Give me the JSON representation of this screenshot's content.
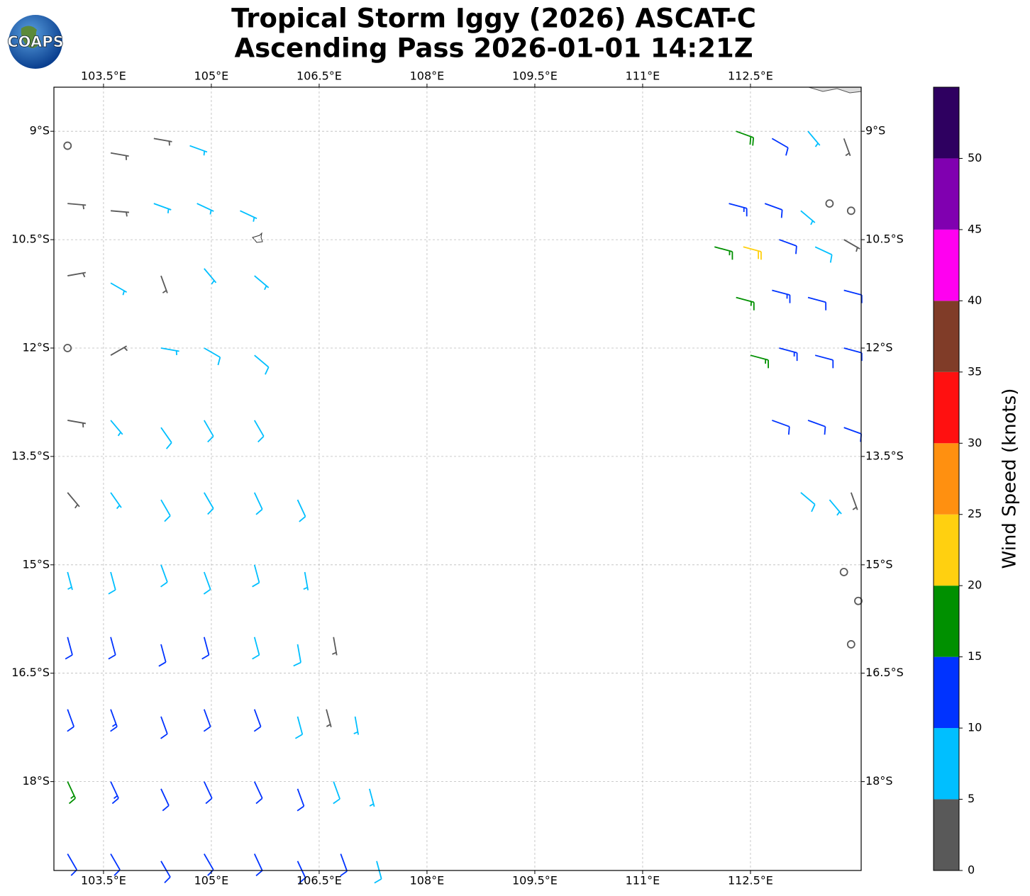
{
  "header": {
    "logo": "COAPS",
    "title": [
      "Tropical Storm Iggy (2026) ASCAT-C",
      "Ascending Pass 2026-01-01 14:21Z"
    ]
  },
  "chart_data": {
    "type": "wind-barbs",
    "xlim": [
      102.81,
      114.04
    ],
    "ylim": [
      -19.23,
      -8.39
    ],
    "xticks": [
      {
        "value": 103.5,
        "label": "103.5°E"
      },
      {
        "value": 105,
        "label": "105°E"
      },
      {
        "value": 106.5,
        "label": "106.5°E"
      },
      {
        "value": 108,
        "label": "108°E"
      },
      {
        "value": 109.5,
        "label": "109.5°E"
      },
      {
        "value": 111,
        "label": "111°E"
      },
      {
        "value": 112.5,
        "label": "112.5°E"
      }
    ],
    "yticks": [
      {
        "value": -9,
        "label": "9°S"
      },
      {
        "value": -10.5,
        "label": "10.5°S"
      },
      {
        "value": -12,
        "label": "12°S"
      },
      {
        "value": -13.5,
        "label": "13.5°S"
      },
      {
        "value": -15,
        "label": "15°S"
      },
      {
        "value": -16.5,
        "label": "16.5°S"
      },
      {
        "value": -18,
        "label": "18°S"
      }
    ],
    "grid": true,
    "barbs": [
      {
        "lon": 103.0,
        "lat": -9.2,
        "speed": 1,
        "dir": 90
      },
      {
        "lon": 103.6,
        "lat": -9.3,
        "speed": 4,
        "dir": 100
      },
      {
        "lon": 104.2,
        "lat": -9.1,
        "speed": 4,
        "dir": 100
      },
      {
        "lon": 104.7,
        "lat": -9.2,
        "speed": 7,
        "dir": 110
      },
      {
        "lon": 103.0,
        "lat": -10.0,
        "speed": 4,
        "dir": 95
      },
      {
        "lon": 103.6,
        "lat": -10.1,
        "speed": 4,
        "dir": 95
      },
      {
        "lon": 104.2,
        "lat": -10.0,
        "speed": 7,
        "dir": 110
      },
      {
        "lon": 104.8,
        "lat": -10.0,
        "speed": 7,
        "dir": 115
      },
      {
        "lon": 105.4,
        "lat": -10.1,
        "speed": 7,
        "dir": 115
      },
      {
        "lon": 103.0,
        "lat": -11.0,
        "speed": 3,
        "dir": 80
      },
      {
        "lon": 103.6,
        "lat": -11.1,
        "speed": 6,
        "dir": 120
      },
      {
        "lon": 104.3,
        "lat": -11.0,
        "speed": 4,
        "dir": 160
      },
      {
        "lon": 104.9,
        "lat": -10.9,
        "speed": 7,
        "dir": 140
      },
      {
        "lon": 105.6,
        "lat": -11.0,
        "speed": 7,
        "dir": 130
      },
      {
        "lon": 103.0,
        "lat": -12.0,
        "speed": 1,
        "dir": 90
      },
      {
        "lon": 103.6,
        "lat": -12.1,
        "speed": 4,
        "dir": 60
      },
      {
        "lon": 104.3,
        "lat": -12.0,
        "speed": 7,
        "dir": 100
      },
      {
        "lon": 104.9,
        "lat": -12.0,
        "speed": 8,
        "dir": 120
      },
      {
        "lon": 105.6,
        "lat": -12.1,
        "speed": 8,
        "dir": 130
      },
      {
        "lon": 103.0,
        "lat": -13.0,
        "speed": 4,
        "dir": 100
      },
      {
        "lon": 103.6,
        "lat": -13.0,
        "speed": 7,
        "dir": 140
      },
      {
        "lon": 104.3,
        "lat": -13.1,
        "speed": 8,
        "dir": 145
      },
      {
        "lon": 104.9,
        "lat": -13.0,
        "speed": 8,
        "dir": 150
      },
      {
        "lon": 105.6,
        "lat": -13.0,
        "speed": 9,
        "dir": 150
      },
      {
        "lon": 103.0,
        "lat": -14.0,
        "speed": 4,
        "dir": 140
      },
      {
        "lon": 103.6,
        "lat": -14.0,
        "speed": 7,
        "dir": 145
      },
      {
        "lon": 104.3,
        "lat": -14.1,
        "speed": 8,
        "dir": 150
      },
      {
        "lon": 104.9,
        "lat": -14.0,
        "speed": 8,
        "dir": 150
      },
      {
        "lon": 105.6,
        "lat": -14.0,
        "speed": 8,
        "dir": 155
      },
      {
        "lon": 106.2,
        "lat": -14.1,
        "speed": 9,
        "dir": 155
      },
      {
        "lon": 103.0,
        "lat": -15.1,
        "speed": 7,
        "dir": 165
      },
      {
        "lon": 103.6,
        "lat": -15.1,
        "speed": 8,
        "dir": 165
      },
      {
        "lon": 104.3,
        "lat": -15.0,
        "speed": 8,
        "dir": 160
      },
      {
        "lon": 104.9,
        "lat": -15.1,
        "speed": 8,
        "dir": 160
      },
      {
        "lon": 105.6,
        "lat": -15.0,
        "speed": 9,
        "dir": 165
      },
      {
        "lon": 106.3,
        "lat": -15.1,
        "speed": 7,
        "dir": 170
      },
      {
        "lon": 103.0,
        "lat": -16.0,
        "speed": 11,
        "dir": 165
      },
      {
        "lon": 103.6,
        "lat": -16.0,
        "speed": 12,
        "dir": 165
      },
      {
        "lon": 104.3,
        "lat": -16.1,
        "speed": 12,
        "dir": 165
      },
      {
        "lon": 104.9,
        "lat": -16.0,
        "speed": 11,
        "dir": 165
      },
      {
        "lon": 105.6,
        "lat": -16.0,
        "speed": 9,
        "dir": 165
      },
      {
        "lon": 106.2,
        "lat": -16.1,
        "speed": 8,
        "dir": 170
      },
      {
        "lon": 106.7,
        "lat": -16.0,
        "speed": 4,
        "dir": 170
      },
      {
        "lon": 103.0,
        "lat": -17.0,
        "speed": 12,
        "dir": 160
      },
      {
        "lon": 103.6,
        "lat": -17.0,
        "speed": 13,
        "dir": 160
      },
      {
        "lon": 104.3,
        "lat": -17.1,
        "speed": 12,
        "dir": 160
      },
      {
        "lon": 104.9,
        "lat": -17.0,
        "speed": 12,
        "dir": 160
      },
      {
        "lon": 105.6,
        "lat": -17.0,
        "speed": 11,
        "dir": 160
      },
      {
        "lon": 106.2,
        "lat": -17.1,
        "speed": 9,
        "dir": 165
      },
      {
        "lon": 106.6,
        "lat": -17.0,
        "speed": 4,
        "dir": 165
      },
      {
        "lon": 107.0,
        "lat": -17.1,
        "speed": 7,
        "dir": 170
      },
      {
        "lon": 103.0,
        "lat": -18.0,
        "speed": 16,
        "dir": 155
      },
      {
        "lon": 103.6,
        "lat": -18.0,
        "speed": 13,
        "dir": 155
      },
      {
        "lon": 104.3,
        "lat": -18.1,
        "speed": 12,
        "dir": 155
      },
      {
        "lon": 104.9,
        "lat": -18.0,
        "speed": 12,
        "dir": 155
      },
      {
        "lon": 105.6,
        "lat": -18.0,
        "speed": 12,
        "dir": 155
      },
      {
        "lon": 106.2,
        "lat": -18.1,
        "speed": 10,
        "dir": 160
      },
      {
        "lon": 106.7,
        "lat": -18.0,
        "speed": 8,
        "dir": 160
      },
      {
        "lon": 107.2,
        "lat": -18.1,
        "speed": 7,
        "dir": 165
      },
      {
        "lon": 103.0,
        "lat": -19.0,
        "speed": 12,
        "dir": 150
      },
      {
        "lon": 103.6,
        "lat": -19.0,
        "speed": 12,
        "dir": 150
      },
      {
        "lon": 104.3,
        "lat": -19.1,
        "speed": 12,
        "dir": 150
      },
      {
        "lon": 104.9,
        "lat": -19.0,
        "speed": 12,
        "dir": 150
      },
      {
        "lon": 105.6,
        "lat": -19.0,
        "speed": 11,
        "dir": 155
      },
      {
        "lon": 106.2,
        "lat": -19.1,
        "speed": 11,
        "dir": 155
      },
      {
        "lon": 106.8,
        "lat": -19.0,
        "speed": 10,
        "dir": 160
      },
      {
        "lon": 107.3,
        "lat": -19.1,
        "speed": 8,
        "dir": 165
      },
      {
        "lon": 112.3,
        "lat": -9.0,
        "speed": 18,
        "dir": 110
      },
      {
        "lon": 112.8,
        "lat": -9.1,
        "speed": 12,
        "dir": 120
      },
      {
        "lon": 113.3,
        "lat": -9.0,
        "speed": 7,
        "dir": 140
      },
      {
        "lon": 113.8,
        "lat": -9.1,
        "speed": 4,
        "dir": 160
      },
      {
        "lon": 112.2,
        "lat": -10.0,
        "speed": 13,
        "dir": 105
      },
      {
        "lon": 112.7,
        "lat": -10.0,
        "speed": 12,
        "dir": 110
      },
      {
        "lon": 113.2,
        "lat": -10.1,
        "speed": 7,
        "dir": 130
      },
      {
        "lon": 113.6,
        "lat": -10.0,
        "speed": 1,
        "dir": 90
      },
      {
        "lon": 113.9,
        "lat": -10.1,
        "speed": 1,
        "dir": 90
      },
      {
        "lon": 112.0,
        "lat": -10.6,
        "speed": 17,
        "dir": 105
      },
      {
        "lon": 112.4,
        "lat": -10.6,
        "speed": 20,
        "dir": 105
      },
      {
        "lon": 112.9,
        "lat": -10.5,
        "speed": 12,
        "dir": 110
      },
      {
        "lon": 113.4,
        "lat": -10.6,
        "speed": 9,
        "dir": 115
      },
      {
        "lon": 113.8,
        "lat": -10.5,
        "speed": 3,
        "dir": 120
      },
      {
        "lon": 112.3,
        "lat": -11.3,
        "speed": 16,
        "dir": 105
      },
      {
        "lon": 112.8,
        "lat": -11.2,
        "speed": 13,
        "dir": 105
      },
      {
        "lon": 113.3,
        "lat": -11.3,
        "speed": 12,
        "dir": 105
      },
      {
        "lon": 113.8,
        "lat": -11.2,
        "speed": 12,
        "dir": 105
      },
      {
        "lon": 112.5,
        "lat": -12.1,
        "speed": 17,
        "dir": 105
      },
      {
        "lon": 112.9,
        "lat": -12.0,
        "speed": 14,
        "dir": 105
      },
      {
        "lon": 113.4,
        "lat": -12.1,
        "speed": 12,
        "dir": 105
      },
      {
        "lon": 113.8,
        "lat": -12.0,
        "speed": 11,
        "dir": 105
      },
      {
        "lon": 112.8,
        "lat": -13.0,
        "speed": 12,
        "dir": 110
      },
      {
        "lon": 113.3,
        "lat": -13.0,
        "speed": 11,
        "dir": 110
      },
      {
        "lon": 113.8,
        "lat": -13.1,
        "speed": 11,
        "dir": 110
      },
      {
        "lon": 113.2,
        "lat": -14.0,
        "speed": 8,
        "dir": 130
      },
      {
        "lon": 113.6,
        "lat": -14.1,
        "speed": 7,
        "dir": 140
      },
      {
        "lon": 113.9,
        "lat": -14.0,
        "speed": 4,
        "dir": 160
      },
      {
        "lon": 113.8,
        "lat": -15.1,
        "speed": 1,
        "dir": 90
      },
      {
        "lon": 114.0,
        "lat": -15.5,
        "speed": 1,
        "dir": 90
      },
      {
        "lon": 113.9,
        "lat": -16.1,
        "speed": 1,
        "dir": 90
      }
    ],
    "colorbar": {
      "label": "Wind Speed (knots)",
      "lim": [
        0,
        55
      ],
      "ticks": [
        0,
        5,
        10,
        15,
        20,
        25,
        30,
        35,
        40,
        45,
        50
      ],
      "colors": [
        "#595959",
        "#00bfff",
        "#0033ff",
        "#009000",
        "#ffd010",
        "#ff9010",
        "#ff1010",
        "#803c28",
        "#ff00f0",
        "#8000b0",
        "#2e0060"
      ]
    }
  }
}
